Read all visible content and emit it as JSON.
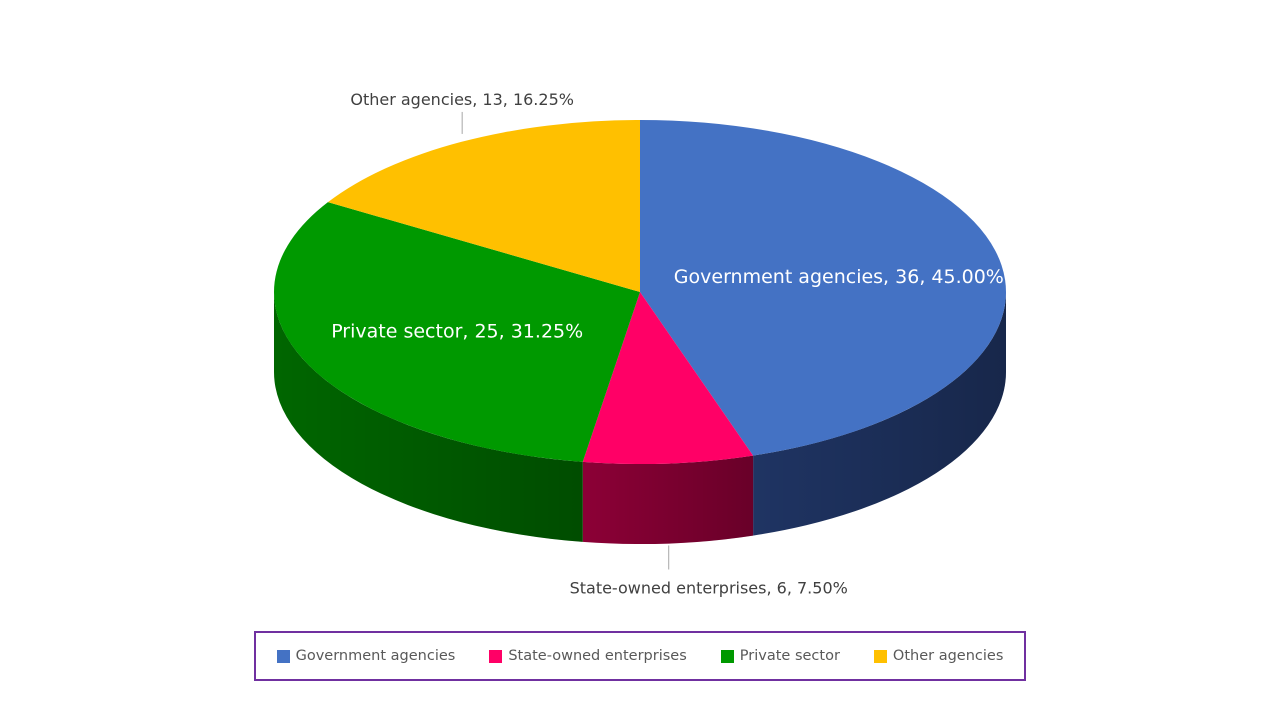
{
  "chart_data": {
    "type": "pie",
    "style": "3d",
    "title": "",
    "slices": [
      {
        "name": "Government agencies",
        "value": 36,
        "percent": "45.00%",
        "label": "Government agencies, 36, 45.00%",
        "color": "#4472c4",
        "side_color": "#1f3463",
        "label_position": "inside"
      },
      {
        "name": "State-owned enterprises",
        "value": 6,
        "percent": "7.50%",
        "label": "State-owned enterprises, 6, 7.50%",
        "color": "#ff0066",
        "side_color": "#8c0036",
        "label_position": "outside-bottom"
      },
      {
        "name": "Private sector",
        "value": 25,
        "percent": "31.25%",
        "label": "Private sector, 25, 31.25%",
        "color": "#009900",
        "side_color": "#006600",
        "label_position": "inside"
      },
      {
        "name": "Other agencies",
        "value": 13,
        "percent": "16.25%",
        "label": "Other agencies, 13, 16.25%",
        "color": "#ffc000",
        "side_color": "#b38600",
        "label_position": "outside-top"
      }
    ],
    "legend": {
      "placement": "bottom",
      "border_color": "#7030a0",
      "items": [
        "Government agencies",
        "State-owned enterprises",
        "Private sector",
        "Other agencies"
      ]
    }
  }
}
